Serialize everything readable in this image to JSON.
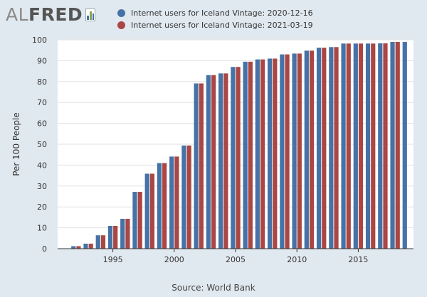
{
  "logo": {
    "text_al": "AL",
    "text_fred": "FRED"
  },
  "legend": [
    {
      "label": "Internet users for Iceland Vintage: 2020-12-16",
      "color": "#4572a7"
    },
    {
      "label": "Internet users for Iceland Vintage: 2021-03-19",
      "color": "#aa4643"
    }
  ],
  "source": "Source: World Bank",
  "chart_data": {
    "type": "bar",
    "ylabel": "Per 100 People",
    "xlabel": "",
    "ylim": [
      0,
      100
    ],
    "yticks": [
      0,
      10,
      20,
      30,
      40,
      50,
      60,
      70,
      80,
      90,
      100
    ],
    "xticks": [
      1995,
      2000,
      2005,
      2010,
      2015
    ],
    "xlim": [
      1990.5,
      2019.5
    ],
    "grid": true,
    "legend_position": "top",
    "categories": [
      1992,
      1993,
      1994,
      1995,
      1996,
      1997,
      1998,
      1999,
      2000,
      2001,
      2002,
      2003,
      2004,
      2005,
      2006,
      2007,
      2008,
      2009,
      2010,
      2011,
      2012,
      2013,
      2014,
      2015,
      2016,
      2017,
      2018,
      2019
    ],
    "series": [
      {
        "name": "Internet users for Iceland Vintage: 2020-12-16",
        "color": "#4572a7",
        "values": [
          1.2,
          2.4,
          6.4,
          10.9,
          14.3,
          27.2,
          35.9,
          41.0,
          44.1,
          49.4,
          79.1,
          83.1,
          83.9,
          87.0,
          89.5,
          90.6,
          91.0,
          93.0,
          93.4,
          94.8,
          96.2,
          96.5,
          98.2,
          98.2,
          98.2,
          98.3,
          99.0,
          99.0
        ]
      },
      {
        "name": "Internet users for Iceland Vintage: 2021-03-19",
        "color": "#aa4643",
        "values": [
          1.2,
          2.4,
          6.4,
          10.9,
          14.3,
          27.2,
          35.9,
          41.0,
          44.1,
          49.4,
          79.1,
          83.1,
          83.9,
          87.0,
          89.5,
          90.6,
          91.0,
          93.0,
          93.4,
          94.8,
          96.2,
          96.5,
          98.2,
          98.2,
          98.2,
          98.3,
          99.0,
          null
        ]
      }
    ]
  }
}
